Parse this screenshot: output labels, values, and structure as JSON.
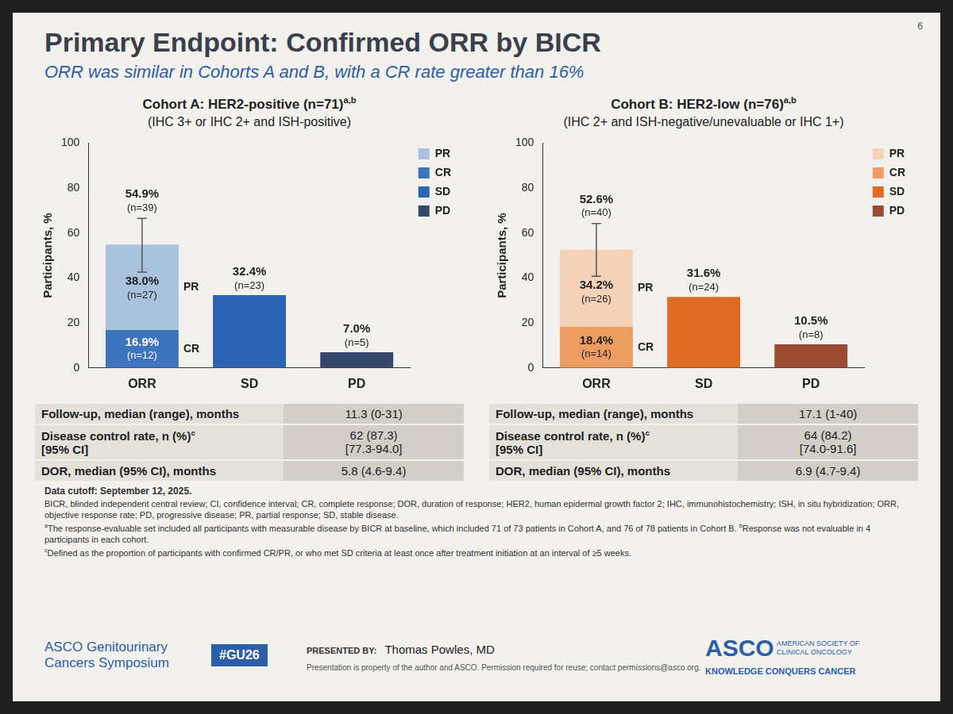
{
  "title": "Primary Endpoint: Confirmed ORR by BICR",
  "subtitle": "ORR was similar in Cohorts A and B, with a CR rate greater than 16%",
  "page_number": "6",
  "chart_data": [
    {
      "type": "bar",
      "stacked": true,
      "title": "Cohort A: HER2-positive (n=71)",
      "title_sup": "a,b",
      "subtitle": "(IHC 3+ or IHC 2+ and ISH-positive)",
      "y_label": "Participants, %",
      "categories": [
        "ORR",
        "SD",
        "PD"
      ],
      "series": [
        {
          "name": "PR",
          "color": "#a9c2de",
          "values": [
            38.0,
            null,
            null
          ],
          "value_labels": [
            "38.0%",
            null,
            null
          ],
          "n_labels": [
            "(n=27)",
            null,
            null
          ]
        },
        {
          "name": "CR",
          "color": "#3c74bd",
          "values": [
            16.9,
            null,
            null
          ],
          "value_labels": [
            "16.9%",
            null,
            null
          ],
          "n_labels": [
            "(n=12)",
            null,
            null
          ]
        },
        {
          "name": "SD",
          "color": "#2e63b4",
          "values": [
            null,
            32.4,
            null
          ],
          "value_labels": [
            null,
            "32.4%",
            null
          ],
          "n_labels": [
            null,
            "(n=23)",
            null
          ]
        },
        {
          "name": "PD",
          "color": "#34486b",
          "values": [
            null,
            null,
            7.0
          ],
          "value_labels": [
            null,
            null,
            "7.0%"
          ],
          "n_labels": [
            null,
            null,
            "(n=5)"
          ]
        }
      ],
      "totals": [
        {
          "category": "ORR",
          "value": 54.9,
          "label": "54.9%",
          "n_label": "(n=39)"
        }
      ],
      "error_bars": [
        {
          "category": "ORR",
          "low": 42.6,
          "high": 66.5
        }
      ],
      "ylim": [
        0,
        100
      ],
      "yticks": [
        0,
        20,
        40,
        60,
        80,
        100
      ],
      "grid": false,
      "legend": "top-right",
      "data_labels": true,
      "table": [
        {
          "label": "Follow-up, median (range), months",
          "value": "11.3 (0-31)"
        },
        {
          "label": "Disease control rate, n (%)",
          "label_sup": "c",
          "label2": "[95% CI]",
          "value": "62 (87.3)",
          "value2": "[77.3-94.0]"
        },
        {
          "label": "DOR, median (95% CI), months",
          "value": "5.8 (4.6-9.4)"
        }
      ]
    },
    {
      "type": "bar",
      "stacked": true,
      "title": "Cohort B: HER2-low (n=76)",
      "title_sup": "a,b",
      "subtitle": "(IHC 2+ and ISH-negative/unevaluable or IHC 1+)",
      "y_label": "Participants, %",
      "categories": [
        "ORR",
        "SD",
        "PD"
      ],
      "series": [
        {
          "name": "PR",
          "color": "#f6d2b8",
          "values": [
            34.2,
            null,
            null
          ],
          "value_labels": [
            "34.2%",
            null,
            null
          ],
          "n_labels": [
            "(n=26)",
            null,
            null
          ]
        },
        {
          "name": "CR",
          "color": "#ee9d62",
          "values": [
            18.4,
            null,
            null
          ],
          "value_labels": [
            "18.4%",
            null,
            null
          ],
          "n_labels": [
            "(n=14)",
            null,
            null
          ]
        },
        {
          "name": "SD",
          "color": "#df6a22",
          "values": [
            null,
            31.6,
            null
          ],
          "value_labels": [
            null,
            "31.6%",
            null
          ],
          "n_labels": [
            null,
            "(n=24)",
            null
          ]
        },
        {
          "name": "PD",
          "color": "#9b4a34",
          "values": [
            null,
            null,
            10.5
          ],
          "value_labels": [
            null,
            null,
            "10.5%"
          ],
          "n_labels": [
            null,
            null,
            "(n=8)"
          ]
        }
      ],
      "totals": [
        {
          "category": "ORR",
          "value": 52.6,
          "label": "52.6%",
          "n_label": "(n=40)"
        }
      ],
      "error_bars": [
        {
          "category": "ORR",
          "low": 40.8,
          "high": 64.2
        }
      ],
      "ylim": [
        0,
        100
      ],
      "yticks": [
        0,
        20,
        40,
        60,
        80,
        100
      ],
      "grid": false,
      "legend": "top-right",
      "data_labels": true,
      "table": [
        {
          "label": "Follow-up, median (range), months",
          "value": "17.1 (1-40)"
        },
        {
          "label": "Disease control rate, n (%)",
          "label_sup": "c",
          "label2": "[95% CI]",
          "value": "64 (84.2)",
          "value2": "[74.0-91.6]"
        },
        {
          "label": "DOR, median (95% CI), months",
          "value": "6.9 (4.7-9.4)"
        }
      ]
    }
  ],
  "footnotes": [
    [
      {
        "text": "Data cutoff: September 12, 2025."
      }
    ],
    [
      {
        "text": "BICR, blinded independent central review; CI, confidence interval; CR, complete response; DOR, duration of response; HER2, human epidermal growth factor 2; IHC, immunohistochemistry; ISH, in situ hybridization; ORR, objective response rate; PD, progressive disease; PR, partial response; SD, stable disease."
      }
    ],
    [
      {
        "sup": "a",
        "text": "The response-evaluable set included all participants with measurable disease by BICR at baseline, which included 71 of 73 patients in Cohort A, and 76 of 78 patients in Cohort B."
      },
      {
        "sup": "b",
        "text": "Response was not evaluable in 4 participants in each cohort."
      }
    ],
    [
      {
        "sup": "c",
        "text": "Defined as the proportion of participants with confirmed CR/PR, or who met SD criteria at least once after treatment initiation at an interval of ≥5 weeks."
      }
    ]
  ],
  "footer": {
    "symposium": [
      "ASCO Genitourinary",
      "Cancers Symposium"
    ],
    "hashtag": "#GU26",
    "presented_by": "PRESENTED BY:",
    "presenter": "Thomas Powles, MD",
    "permission": "Presentation is property of the author and ASCO. Permission required for reuse; contact permissions@asco.org.",
    "logo": "ASCO",
    "logo_sub": "AMERICAN SOCIETY OF CLINICAL ONCOLOGY",
    "tagline": "KNOWLEDGE CONQUERS CANCER"
  }
}
